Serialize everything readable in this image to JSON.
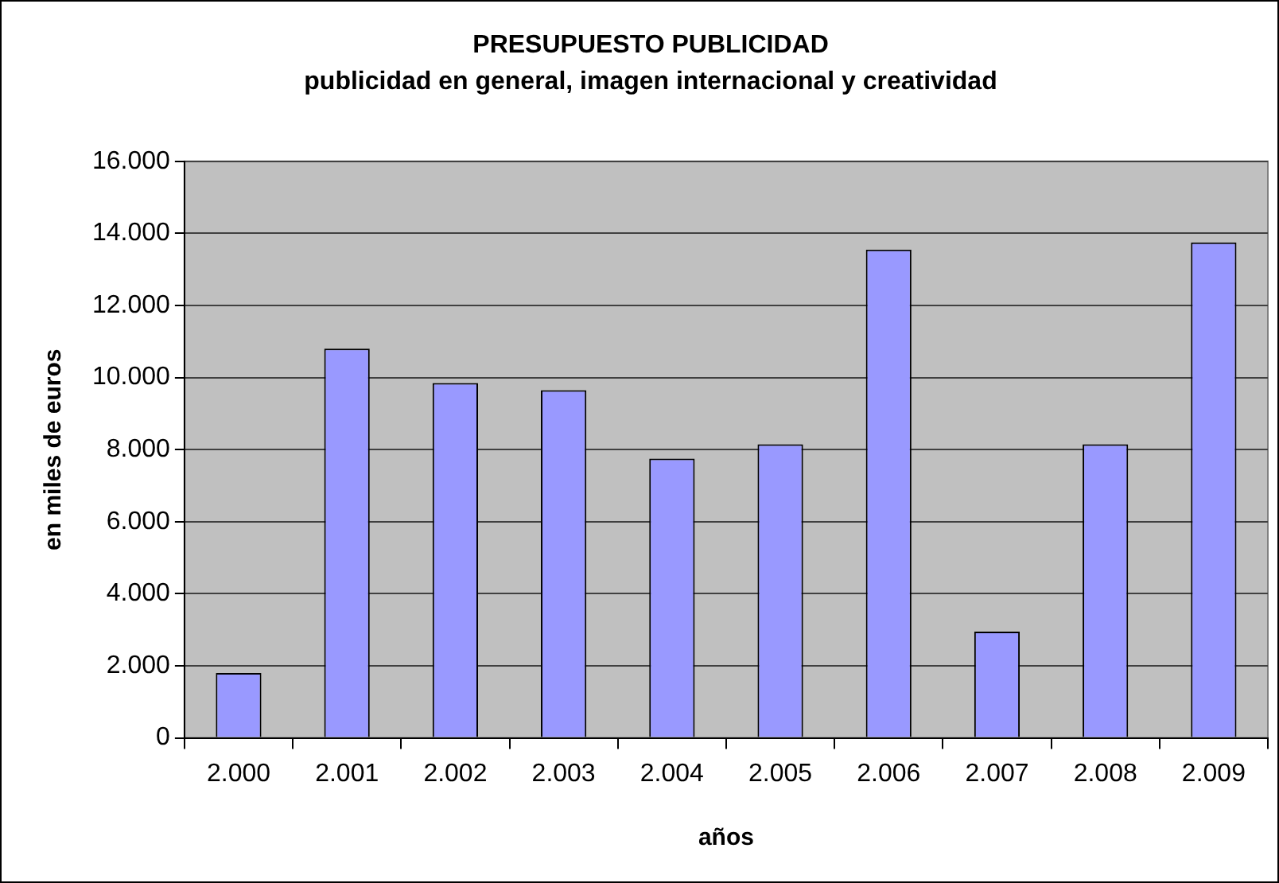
{
  "chart_data": {
    "type": "bar",
    "title": "PRESUPUESTO PUBLICIDAD",
    "subtitle": "publicidad en general, imagen internacional y creatividad",
    "xlabel": "años",
    "ylabel": "en miles de euros",
    "categories": [
      "2.000",
      "2.001",
      "2.002",
      "2.003",
      "2.004",
      "2.005",
      "2.006",
      "2.007",
      "2.008",
      "2.009"
    ],
    "values": [
      1800,
      10800,
      9850,
      9650,
      7750,
      8150,
      13550,
      2950,
      8150,
      13750
    ],
    "color": "#9999ff",
    "ylim": [
      0,
      16000
    ],
    "yticks": [
      {
        "value": 0,
        "label": "0"
      },
      {
        "value": 2000,
        "label": "2.000"
      },
      {
        "value": 4000,
        "label": "4.000"
      },
      {
        "value": 6000,
        "label": "6.000"
      },
      {
        "value": 8000,
        "label": "8.000"
      },
      {
        "value": 10000,
        "label": "10.000"
      },
      {
        "value": 12000,
        "label": "12.000"
      },
      {
        "value": 14000,
        "label": "14.000"
      },
      {
        "value": 16000,
        "label": "16.000"
      }
    ],
    "grid": "y",
    "legend": false
  }
}
